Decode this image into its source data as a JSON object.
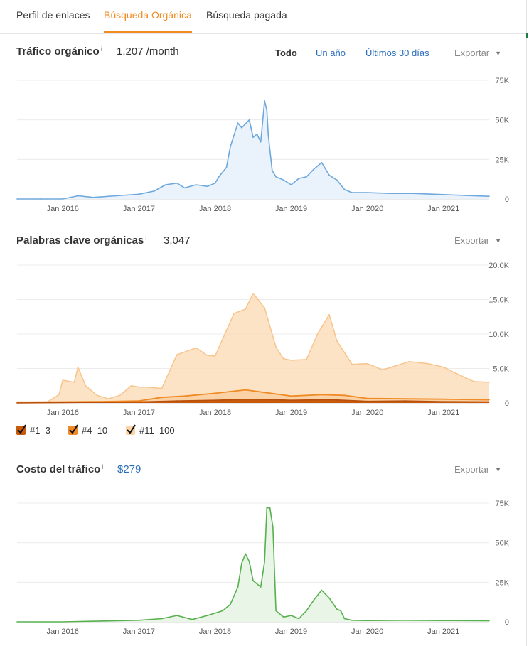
{
  "tabs": [
    {
      "label": "Perfil de enlaces"
    },
    {
      "label": "Búsqueda Orgánica"
    },
    {
      "label": "Búsqueda pagada"
    }
  ],
  "colors": {
    "accent": "#f08c21",
    "link": "#2a6ebb",
    "traffic": "#6fa8dc",
    "cost": "#5cb85c",
    "kw_top3": "#c85a0c",
    "kw_4_10": "#f08a24",
    "kw_11_100": "#fbd4a8"
  },
  "traffic": {
    "title": "Tráfico orgánico",
    "info": "i",
    "value": "1,207 /month",
    "ranges": [
      "Todo",
      "Un año",
      "Últimos 30 días"
    ],
    "export": "Exportar"
  },
  "keywords": {
    "title": "Palabras clave orgánicas",
    "info": "i",
    "value": "3,047",
    "export": "Exportar",
    "legend": [
      "#1–3",
      "#4–10",
      "#11–100"
    ]
  },
  "cost": {
    "title": "Costo del tráfico",
    "info": "i",
    "value": "$279",
    "export": "Exportar"
  },
  "chart_data": [
    {
      "type": "area",
      "x_ticks": [
        "Jan 2016",
        "Jan 2017",
        "Jan 2018",
        "Jan 2019",
        "Jan 2020",
        "Jan 2021"
      ],
      "y_ticks": [
        "75K",
        "50K",
        "25K",
        "0"
      ],
      "ylim": [
        0,
        75000
      ],
      "xlim": [
        2015.4,
        2021.6
      ],
      "grid": true,
      "series": [
        {
          "x": [
            2015.4,
            2015.7,
            2016.0,
            2016.2,
            2016.4,
            2016.7,
            2017.0,
            2017.2,
            2017.35,
            2017.5,
            2017.6,
            2017.75,
            2017.9,
            2018.0,
            2018.05,
            2018.15,
            2018.2,
            2018.3,
            2018.35,
            2018.45,
            2018.5,
            2018.55,
            2018.6,
            2018.65,
            2018.68,
            2018.7,
            2018.75,
            2018.8,
            2018.9,
            2019.0,
            2019.1,
            2019.2,
            2019.3,
            2019.4,
            2019.5,
            2019.6,
            2019.7,
            2019.8,
            2020.0,
            2020.3,
            2020.6,
            2021.0,
            2021.3,
            2021.6
          ],
          "values": [
            0,
            0,
            0,
            2000,
            1000,
            2000,
            3000,
            5000,
            9000,
            10000,
            7000,
            9000,
            8000,
            10000,
            14000,
            20000,
            33000,
            48000,
            45000,
            50000,
            39000,
            41000,
            36000,
            62000,
            56000,
            40000,
            18000,
            14000,
            12000,
            9000,
            13000,
            14000,
            19000,
            23000,
            15000,
            12000,
            6000,
            4000,
            4000,
            3500,
            3500,
            2800,
            2200,
            1700
          ]
        }
      ]
    },
    {
      "type": "area",
      "x_ticks": [
        "Jan 2016",
        "Jan 2017",
        "Jan 2018",
        "Jan 2019",
        "Jan 2020",
        "Jan 2021"
      ],
      "y_ticks": [
        "20.0K",
        "15.0K",
        "10.0K",
        "5.0K",
        "0"
      ],
      "ylim": [
        0,
        20000
      ],
      "xlim": [
        2015.4,
        2021.6
      ],
      "grid": true,
      "series": [
        {
          "name": "#1–3",
          "x": [
            2015.4,
            2016.0,
            2016.5,
            2017.0,
            2017.5,
            2018.0,
            2018.4,
            2018.7,
            2019.0,
            2019.5,
            2020.0,
            2020.5,
            2021.0,
            2021.6
          ],
          "values": [
            0,
            50,
            100,
            150,
            300,
            400,
            550,
            500,
            400,
            500,
            250,
            300,
            200,
            150
          ]
        },
        {
          "name": "#4–10",
          "x": [
            2015.4,
            2016.0,
            2016.5,
            2017.0,
            2017.3,
            2017.6,
            2018.0,
            2018.4,
            2018.8,
            2019.0,
            2019.4,
            2019.7,
            2020.0,
            2020.5,
            2021.0,
            2021.6
          ],
          "values": [
            100,
            150,
            200,
            300,
            800,
            1000,
            1400,
            1900,
            1300,
            1000,
            1200,
            1100,
            650,
            600,
            550,
            450
          ]
        },
        {
          "name": "#11–100",
          "x": [
            2015.4,
            2015.6,
            2015.8,
            2015.95,
            2016.0,
            2016.15,
            2016.2,
            2016.3,
            2016.45,
            2016.6,
            2016.75,
            2016.9,
            2017.0,
            2017.1,
            2017.3,
            2017.5,
            2017.75,
            2017.9,
            2018.0,
            2018.25,
            2018.4,
            2018.5,
            2018.65,
            2018.8,
            2018.9,
            2019.0,
            2019.2,
            2019.35,
            2019.5,
            2019.6,
            2019.8,
            2020.0,
            2020.2,
            2020.35,
            2020.55,
            2020.8,
            2021.0,
            2021.2,
            2021.4,
            2021.6
          ],
          "values": [
            150,
            150,
            150,
            1200,
            3300,
            3000,
            5200,
            2500,
            1100,
            600,
            1100,
            2500,
            2300,
            2300,
            2100,
            7000,
            8000,
            6900,
            6800,
            13000,
            13600,
            15900,
            13800,
            8100,
            6400,
            6200,
            6300,
            10100,
            12800,
            9000,
            5600,
            5700,
            4800,
            5300,
            6000,
            5700,
            5200,
            4100,
            3100,
            3000
          ]
        }
      ]
    },
    {
      "type": "area",
      "x_ticks": [
        "Jan 2016",
        "Jan 2017",
        "Jan 2018",
        "Jan 2019",
        "Jan 2020",
        "Jan 2021"
      ],
      "y_ticks": [
        "75K",
        "50K",
        "25K",
        "0"
      ],
      "ylim": [
        0,
        75000
      ],
      "xlim": [
        2015.4,
        2021.6
      ],
      "grid": true,
      "series": [
        {
          "x": [
            2015.4,
            2016.0,
            2016.5,
            2017.0,
            2017.3,
            2017.5,
            2017.7,
            2017.9,
            2018.1,
            2018.2,
            2018.3,
            2018.35,
            2018.4,
            2018.45,
            2018.5,
            2018.6,
            2018.65,
            2018.68,
            2018.72,
            2018.76,
            2018.8,
            2018.9,
            2019.0,
            2019.1,
            2019.2,
            2019.3,
            2019.4,
            2019.5,
            2019.6,
            2019.65,
            2019.7,
            2019.8,
            2020.0,
            2020.5,
            2021.0,
            2021.6
          ],
          "values": [
            0,
            0,
            500,
            1000,
            2000,
            4000,
            1500,
            4000,
            7000,
            11000,
            22000,
            37000,
            43000,
            38000,
            26000,
            22000,
            38000,
            72000,
            72000,
            60000,
            7000,
            3000,
            4000,
            2000,
            7000,
            14000,
            20000,
            15000,
            8000,
            7000,
            2000,
            1000,
            800,
            1000,
            800,
            700
          ]
        }
      ]
    }
  ]
}
